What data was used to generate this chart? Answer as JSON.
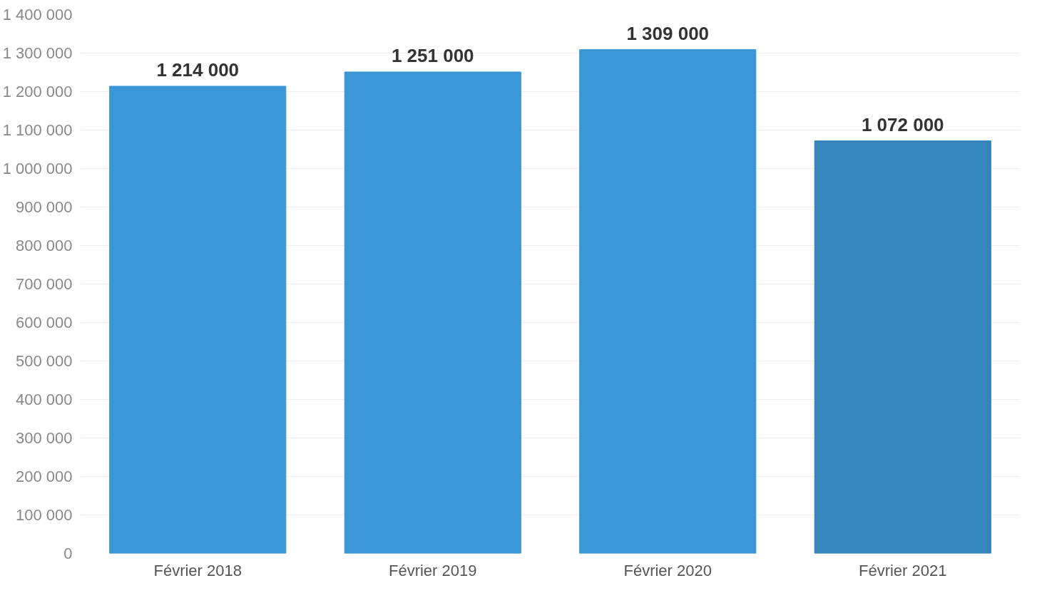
{
  "chart_data": {
    "type": "bar",
    "categories": [
      "Février 2018",
      "Février 2019",
      "Février 2020",
      "Février 2021"
    ],
    "values": [
      1214000,
      1251000,
      1309000,
      1072000
    ],
    "colors": [
      "#3a96d4",
      "#3a96d4",
      "#3a96d4",
      "#3585bd"
    ],
    "value_labels": [
      "1 214 000",
      "1 251 000",
      "1 309 000",
      "1 072 000"
    ],
    "ylim": [
      0,
      1400000
    ],
    "yticks": [
      {
        "value": 0,
        "label": "0"
      },
      {
        "value": 100000,
        "label": "100 000"
      },
      {
        "value": 200000,
        "label": "200 000"
      },
      {
        "value": 300000,
        "label": "300 000"
      },
      {
        "value": 400000,
        "label": "400 000"
      },
      {
        "value": 500000,
        "label": "500 000"
      },
      {
        "value": 600000,
        "label": "600 000"
      },
      {
        "value": 700000,
        "label": "700 000"
      },
      {
        "value": 800000,
        "label": "800 000"
      },
      {
        "value": 900000,
        "label": "900 000"
      },
      {
        "value": 1000000,
        "label": "1 000 000"
      },
      {
        "value": 1100000,
        "label": "1 100 000"
      },
      {
        "value": 1200000,
        "label": "1 200 000"
      },
      {
        "value": 1300000,
        "label": "1 300 000"
      },
      {
        "value": 1400000,
        "label": "1 400 000"
      }
    ],
    "grid": "y"
  }
}
